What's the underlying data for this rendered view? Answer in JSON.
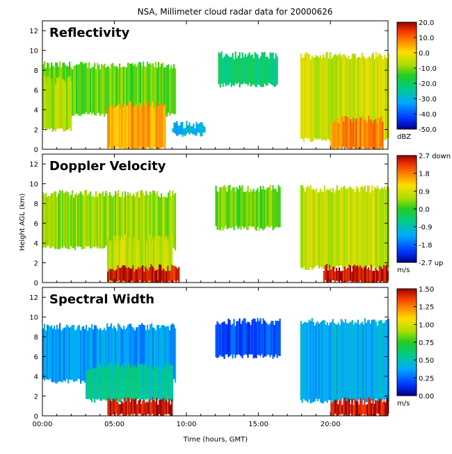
{
  "title": "NSA, Millimeter cloud radar data for 20000626",
  "xlabel": "Time (hours, GMT)",
  "ylabel": "Height AGL (km)",
  "chart_data": [
    {
      "type": "heatmap",
      "panel_title": "Reflectivity",
      "x_range_hours": [
        0,
        24
      ],
      "xticks": [
        "00:00",
        "05:00",
        "10:00",
        "15:00",
        "20:00"
      ],
      "xtick_values": [
        0,
        5,
        10,
        15,
        20
      ],
      "ylim": [
        0,
        13
      ],
      "yticks": [
        0,
        2,
        4,
        6,
        8,
        10,
        12
      ],
      "colorbar": {
        "ticks": [
          "20.0",
          "10.0",
          "0.0",
          "-10.0",
          "-20.0",
          "-30.0",
          "-40.0",
          "-50.0"
        ],
        "range": [
          -50,
          20
        ],
        "unit": "dBZ"
      },
      "regions": [
        {
          "x": [
            0.0,
            9.2
          ],
          "y_bottom": 3.5,
          "y_top": 8.5,
          "value": -12
        },
        {
          "x": [
            0.0,
            2.0
          ],
          "y_bottom": 2.0,
          "y_top": 7.0,
          "value": -8
        },
        {
          "x": [
            4.5,
            8.5
          ],
          "y_bottom": 0.0,
          "y_top": 4.5,
          "value": 5
        },
        {
          "x": [
            9.0,
            11.3
          ],
          "y_bottom": 1.5,
          "y_top": 2.5,
          "value": -30
        },
        {
          "x": [
            12.2,
            16.3
          ],
          "y_bottom": 6.5,
          "y_top": 9.5,
          "value": -22
        },
        {
          "x": [
            17.9,
            24.0
          ],
          "y_bottom": 1.0,
          "y_top": 9.5,
          "value": -5
        },
        {
          "x": [
            20.0,
            23.6
          ],
          "y_bottom": 0.0,
          "y_top": 3.0,
          "value": 8
        }
      ]
    },
    {
      "type": "heatmap",
      "panel_title": "Doppler Velocity",
      "x_range_hours": [
        0,
        24
      ],
      "xticks": [
        "00:00",
        "05:00",
        "10:00",
        "15:00",
        "20:00"
      ],
      "xtick_values": [
        0,
        5,
        10,
        15,
        20
      ],
      "ylim": [
        0,
        13
      ],
      "yticks": [
        0,
        2,
        4,
        6,
        8,
        10,
        12
      ],
      "colorbar": {
        "ticks": [
          "2.7 down",
          "1.8",
          "0.9",
          "0.0",
          "-0.9",
          "-1.8",
          "-2.7 up"
        ],
        "range": [
          -2.7,
          2.7
        ],
        "unit": "m/s"
      },
      "regions": [
        {
          "x": [
            0.0,
            9.2
          ],
          "y_bottom": 3.5,
          "y_top": 9.0,
          "value": 0.5
        },
        {
          "x": [
            4.5,
            9.0
          ],
          "y_bottom": 0.0,
          "y_top": 4.5,
          "value": 0.7
        },
        {
          "x": [
            4.5,
            9.5
          ],
          "y_bottom": 0.0,
          "y_top": 1.5,
          "value": 2.5
        },
        {
          "x": [
            12.0,
            16.5
          ],
          "y_bottom": 5.5,
          "y_top": 9.5,
          "value": 0.3
        },
        {
          "x": [
            17.9,
            24.0
          ],
          "y_bottom": 1.5,
          "y_top": 9.5,
          "value": 0.7
        },
        {
          "x": [
            19.5,
            24.0
          ],
          "y_bottom": 0.0,
          "y_top": 1.5,
          "value": 2.5
        }
      ]
    },
    {
      "type": "heatmap",
      "panel_title": "Spectral Width",
      "x_range_hours": [
        0,
        24
      ],
      "xticks": [
        "00:00",
        "05:00",
        "10:00",
        "15:00",
        "20:00"
      ],
      "xtick_values": [
        0,
        5,
        10,
        15,
        20
      ],
      "ylim": [
        0,
        13
      ],
      "yticks": [
        0,
        2,
        4,
        6,
        8,
        10,
        12
      ],
      "colorbar": {
        "ticks": [
          "1.50",
          "1.25",
          "1.00",
          "0.75",
          "0.50",
          "0.25",
          "0.00"
        ],
        "range": [
          0.0,
          1.5
        ],
        "unit": "m/s"
      },
      "regions": [
        {
          "x": [
            0.0,
            9.2
          ],
          "y_bottom": 3.5,
          "y_top": 9.0,
          "value": 0.35
        },
        {
          "x": [
            3.0,
            9.0
          ],
          "y_bottom": 1.5,
          "y_top": 5.0,
          "value": 0.55
        },
        {
          "x": [
            4.5,
            9.0
          ],
          "y_bottom": 0.0,
          "y_top": 1.5,
          "value": 1.45
        },
        {
          "x": [
            12.0,
            16.5
          ],
          "y_bottom": 6.0,
          "y_top": 9.5,
          "value": 0.2
        },
        {
          "x": [
            17.9,
            24.0
          ],
          "y_bottom": 1.5,
          "y_top": 9.5,
          "value": 0.4
        },
        {
          "x": [
            20.0,
            24.0
          ],
          "y_bottom": 0.0,
          "y_top": 1.5,
          "value": 1.45
        }
      ]
    }
  ]
}
